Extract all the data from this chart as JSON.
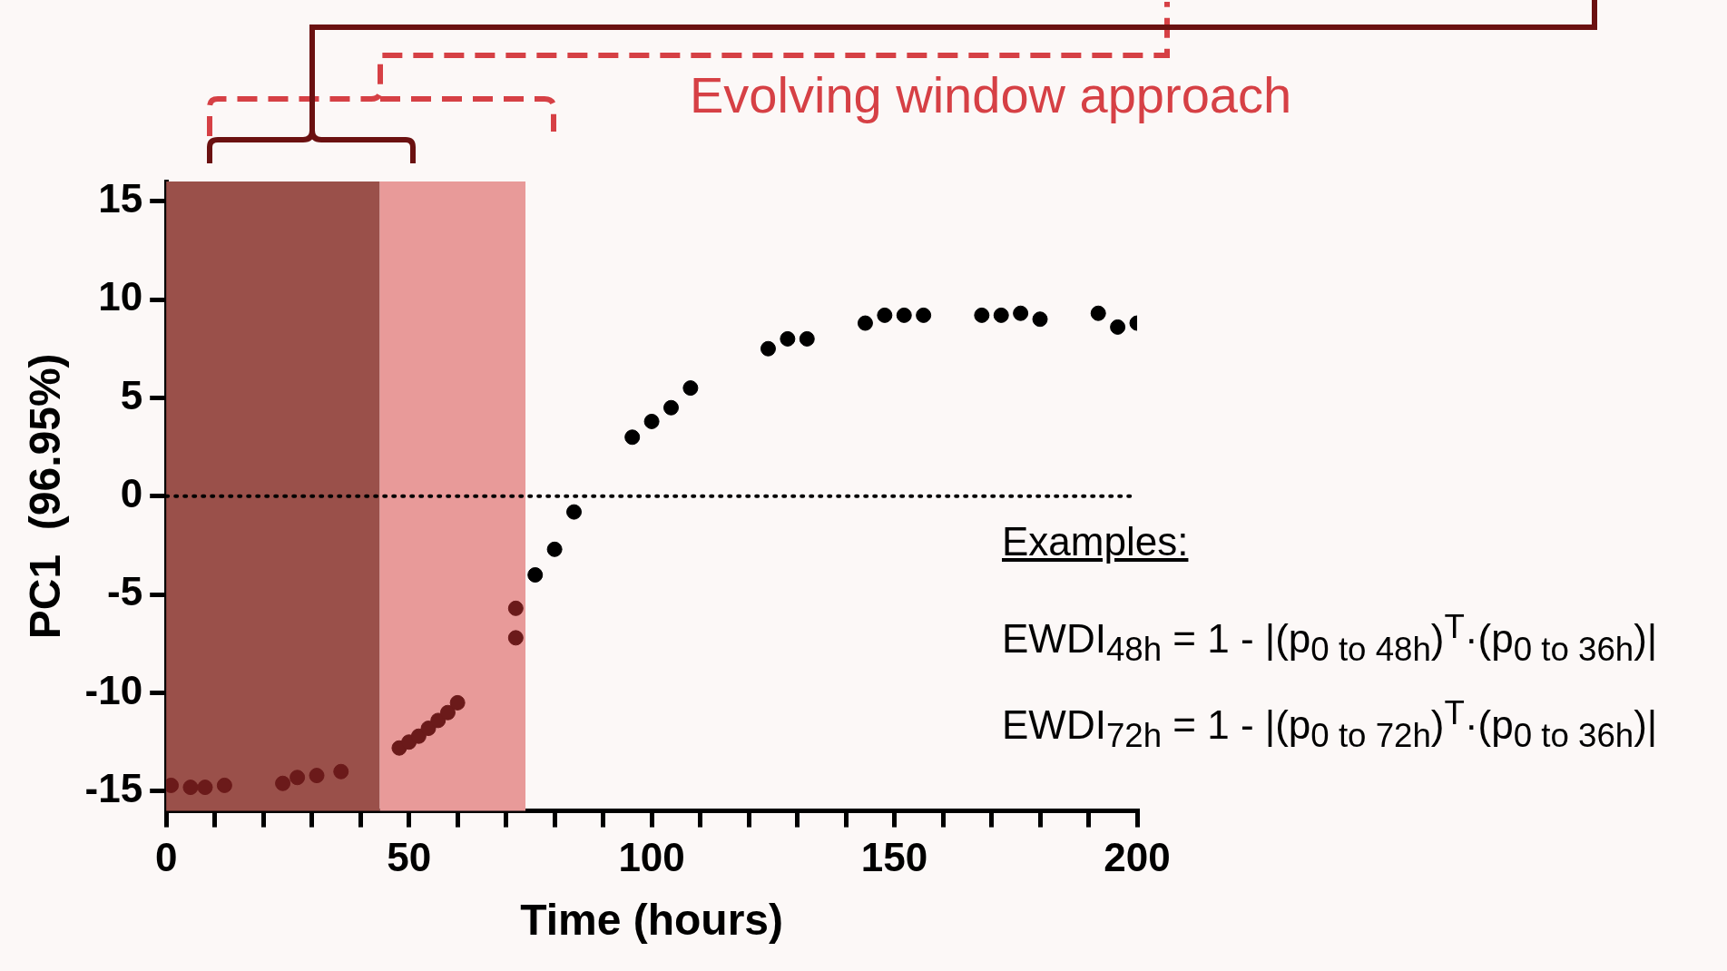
{
  "chart_data": {
    "type": "scatter",
    "xlabel": "Time (hours)",
    "ylabel": "PC1  (96.95%)",
    "xlim": [
      0,
      200
    ],
    "ylim": [
      -16,
      16
    ],
    "xticks": [
      0,
      {
        "value": 10,
        "label": null
      },
      {
        "value": 20,
        "label": null
      },
      {
        "value": 30,
        "label": null
      },
      {
        "value": 40,
        "label": null
      },
      50,
      {
        "value": 60,
        "label": null
      },
      {
        "value": 70,
        "label": null
      },
      {
        "value": 80,
        "label": null
      },
      {
        "value": 90,
        "label": null
      },
      100,
      {
        "value": 110,
        "label": null
      },
      {
        "value": 120,
        "label": null
      },
      {
        "value": 130,
        "label": null
      },
      {
        "value": 140,
        "label": null
      },
      150,
      {
        "value": 160,
        "label": null
      },
      {
        "value": 170,
        "label": null
      },
      {
        "value": 180,
        "label": null
      },
      {
        "value": 190,
        "label": null
      },
      200
    ],
    "yticks": [
      -15,
      -10,
      -5,
      0,
      5,
      10,
      15
    ],
    "marker": "circle",
    "grid": false,
    "legend": false,
    "series": [
      {
        "color": "#6b1a1a",
        "x": [
          1,
          5,
          8,
          12,
          24,
          27,
          31,
          36,
          48,
          50,
          52,
          54,
          56,
          58,
          60,
          72,
          72
        ],
        "values": [
          -14.7,
          -14.8,
          -14.8,
          -14.7,
          -14.6,
          -14.3,
          -14.2,
          -14.0,
          -12.8,
          -12.5,
          -12.2,
          -11.8,
          -11.4,
          -11.0,
          -10.5,
          -5.7,
          -7.2
        ]
      },
      {
        "color": "#000000",
        "x": [
          76,
          80,
          84,
          96,
          100,
          104,
          108,
          124,
          128,
          132,
          144,
          148,
          152,
          156,
          168,
          172,
          176,
          180,
          192,
          196,
          200
        ],
        "values": [
          -4.0,
          -2.7,
          -0.8,
          3.0,
          3.8,
          4.5,
          5.5,
          7.5,
          8.0,
          8.0,
          8.8,
          9.2,
          9.2,
          9.2,
          9.2,
          9.2,
          9.3,
          9.0,
          9.3,
          8.6,
          8.8
        ]
      }
    ],
    "ref_lines": [
      {
        "axis": "y",
        "value": 0,
        "color": "#000000",
        "line_style": "dotted"
      }
    ],
    "bands": [
      {
        "axis": "x",
        "from": 0,
        "to": 44,
        "color": "#9a504a"
      },
      {
        "axis": "x",
        "from": 44,
        "to": 74,
        "color": "#e89a99"
      }
    ],
    "annotations": [
      "Evolving window approach",
      "Examples:",
      "EWDI$_{48h}$ = 1 - |(p$_{0 to 48h}$)$^{T}$·(p$_{0 to 36h}$)|",
      "EWDI$_{72h}$ = 1 - |(p$_{0 to 72h}$)$^{T}$·(p$_{0 to 36h}$)|"
    ]
  }
}
